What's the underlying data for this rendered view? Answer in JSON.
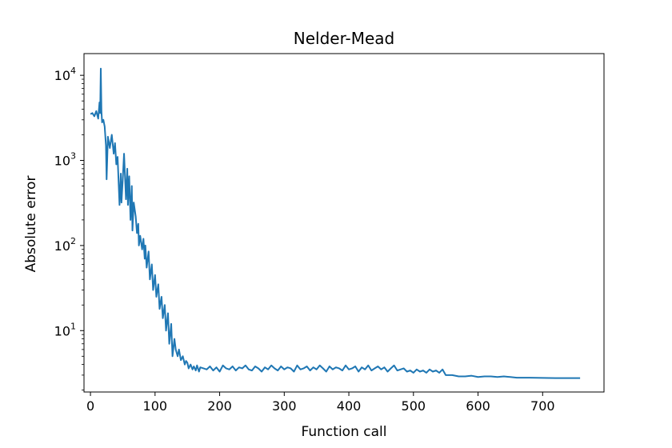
{
  "chart_data": {
    "type": "line",
    "title": "Nelder-Mead",
    "xlabel": "Function call",
    "ylabel": "Absolute error",
    "yscale": "log",
    "xlim": [
      -10,
      795
    ],
    "ylim": [
      1.9,
      18000
    ],
    "xticks": [
      0,
      100,
      200,
      300,
      400,
      500,
      600,
      700
    ],
    "xtick_labels": [
      "0",
      "100",
      "200",
      "300",
      "400",
      "500",
      "600",
      "700"
    ],
    "yticks": [
      10,
      100,
      1000,
      10000
    ],
    "ytick_labels": [
      {
        "base": "10",
        "exp": "1"
      },
      {
        "base": "10",
        "exp": "2"
      },
      {
        "base": "10",
        "exp": "3"
      },
      {
        "base": "10",
        "exp": "4"
      }
    ],
    "grid": false,
    "series_color": "#1f77b4",
    "series": [
      {
        "x": [
          0,
          3,
          6,
          9,
          12,
          14,
          15,
          16,
          17,
          18,
          20,
          22,
          24,
          25,
          27,
          30,
          33,
          36,
          38,
          40,
          42,
          45,
          47,
          48,
          50,
          52,
          55,
          57,
          58,
          60,
          62,
          64,
          65,
          67,
          70,
          72,
          74,
          75,
          77,
          80,
          82,
          84,
          85,
          87,
          90,
          92,
          95,
          97,
          100,
          102,
          105,
          107,
          110,
          112,
          115,
          117,
          120,
          122,
          125,
          127,
          130,
          132,
          135,
          137,
          140,
          143,
          146,
          148,
          150,
          152,
          155,
          158,
          160,
          163,
          165,
          168,
          170,
          175,
          180,
          185,
          190,
          195,
          200,
          205,
          210,
          215,
          220,
          225,
          230,
          235,
          240,
          245,
          250,
          255,
          260,
          265,
          270,
          275,
          280,
          285,
          290,
          295,
          300,
          305,
          310,
          315,
          320,
          325,
          330,
          335,
          340,
          345,
          350,
          355,
          360,
          365,
          370,
          375,
          380,
          385,
          390,
          395,
          400,
          405,
          410,
          415,
          420,
          425,
          430,
          435,
          440,
          445,
          450,
          455,
          460,
          465,
          470,
          475,
          480,
          485,
          490,
          495,
          500,
          505,
          510,
          515,
          520,
          525,
          530,
          535,
          540,
          545,
          550,
          560,
          570,
          580,
          590,
          600,
          610,
          620,
          630,
          640,
          650,
          660,
          680,
          700,
          720,
          740,
          758
        ],
        "y": [
          3500,
          3600,
          3300,
          3800,
          3100,
          4800,
          3600,
          12000,
          3800,
          2800,
          3000,
          2500,
          1500,
          600,
          1900,
          1400,
          2000,
          1200,
          1600,
          900,
          1100,
          300,
          700,
          320,
          600,
          1200,
          350,
          800,
          300,
          650,
          200,
          500,
          150,
          320,
          220,
          140,
          180,
          100,
          130,
          90,
          120,
          70,
          100,
          55,
          85,
          40,
          60,
          30,
          45,
          25,
          35,
          18,
          25,
          14,
          20,
          10,
          16,
          7,
          12,
          5,
          8,
          6,
          5,
          6,
          4.5,
          5,
          4,
          4.4,
          4.2,
          3.6,
          4.0,
          3.5,
          3.8,
          3.4,
          3.9,
          3.3,
          3.7,
          3.6,
          3.5,
          3.8,
          3.4,
          3.7,
          3.3,
          3.9,
          3.6,
          3.5,
          3.8,
          3.4,
          3.7,
          3.6,
          3.9,
          3.5,
          3.4,
          3.8,
          3.6,
          3.3,
          3.7,
          3.5,
          3.9,
          3.6,
          3.4,
          3.8,
          3.5,
          3.7,
          3.6,
          3.3,
          3.9,
          3.5,
          3.6,
          3.8,
          3.4,
          3.7,
          3.5,
          3.9,
          3.6,
          3.3,
          3.8,
          3.5,
          3.7,
          3.6,
          3.4,
          3.9,
          3.5,
          3.6,
          3.8,
          3.3,
          3.7,
          3.5,
          3.9,
          3.4,
          3.6,
          3.8,
          3.5,
          3.7,
          3.3,
          3.6,
          3.9,
          3.4,
          3.5,
          3.6,
          3.3,
          3.4,
          3.2,
          3.5,
          3.3,
          3.4,
          3.2,
          3.5,
          3.3,
          3.4,
          3.2,
          3.5,
          3.0,
          3.0,
          2.9,
          2.9,
          2.95,
          2.85,
          2.9,
          2.9,
          2.85,
          2.9,
          2.85,
          2.8,
          2.8,
          2.78,
          2.77,
          2.77,
          2.77
        ]
      }
    ]
  }
}
